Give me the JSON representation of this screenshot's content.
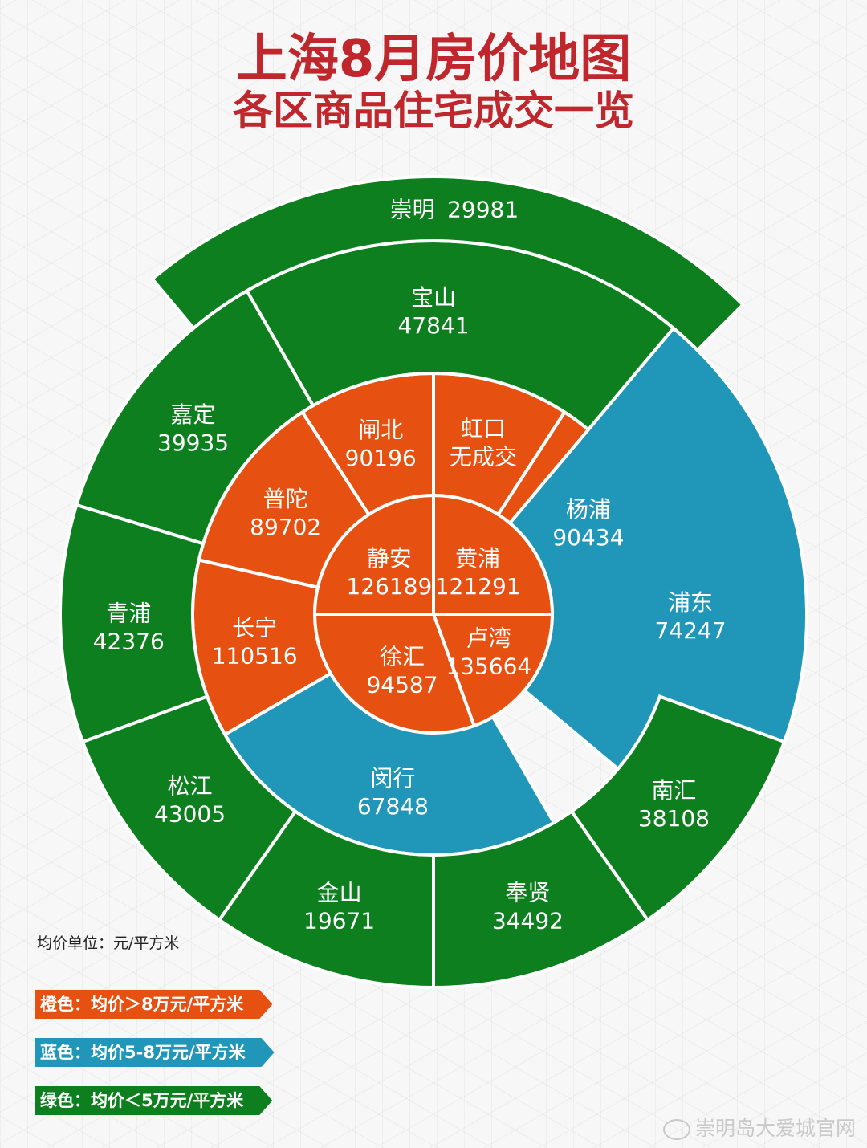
{
  "title": "上海8月房价地图",
  "subtitle": "各区商品住宅成交一览",
  "colors": {
    "orange": "#e65010",
    "blue": "#2096b8",
    "green": "#0e7f1e",
    "title": "#c0272d"
  },
  "chart_data": {
    "type": "sunburst",
    "unit": "元/平方米",
    "districts": [
      {
        "name": "静安",
        "value": "126189",
        "tier": "orange"
      },
      {
        "name": "黄浦",
        "value": "121291",
        "tier": "orange"
      },
      {
        "name": "卢湾",
        "value": "135664",
        "tier": "orange"
      },
      {
        "name": "徐汇",
        "value": "94587",
        "tier": "orange"
      },
      {
        "name": "普陀",
        "value": "89702",
        "tier": "orange"
      },
      {
        "name": "闸北",
        "value": "90196",
        "tier": "orange"
      },
      {
        "name": "虹口",
        "value": "无成交",
        "tier": "orange"
      },
      {
        "name": "杨浦",
        "value": "90434",
        "tier": "orange"
      },
      {
        "name": "长宁",
        "value": "110516",
        "tier": "orange"
      },
      {
        "name": "闵行",
        "value": "67848",
        "tier": "blue"
      },
      {
        "name": "浦东",
        "value": "74247",
        "tier": "blue"
      },
      {
        "name": "宝山",
        "value": "47841",
        "tier": "green"
      },
      {
        "name": "嘉定",
        "value": "39935",
        "tier": "green"
      },
      {
        "name": "青浦",
        "value": "42376",
        "tier": "green"
      },
      {
        "name": "松江",
        "value": "43005",
        "tier": "green"
      },
      {
        "name": "金山",
        "value": "19671",
        "tier": "green"
      },
      {
        "name": "奉贤",
        "value": "34492",
        "tier": "green"
      },
      {
        "name": "南汇",
        "value": "38108",
        "tier": "green"
      },
      {
        "name": "崇明",
        "value": "29981",
        "tier": "green"
      }
    ]
  },
  "unit_note": "均价单位：元/平方米",
  "legend": [
    {
      "label": "橙色：均价＞8万元/平方米",
      "tier": "orange"
    },
    {
      "label": "蓝色：均价5-8万元/平方米",
      "tier": "blue"
    },
    {
      "label": "绿色：均价＜5万元/平方米",
      "tier": "green"
    }
  ],
  "watermark": "崇明岛大爱城官网"
}
